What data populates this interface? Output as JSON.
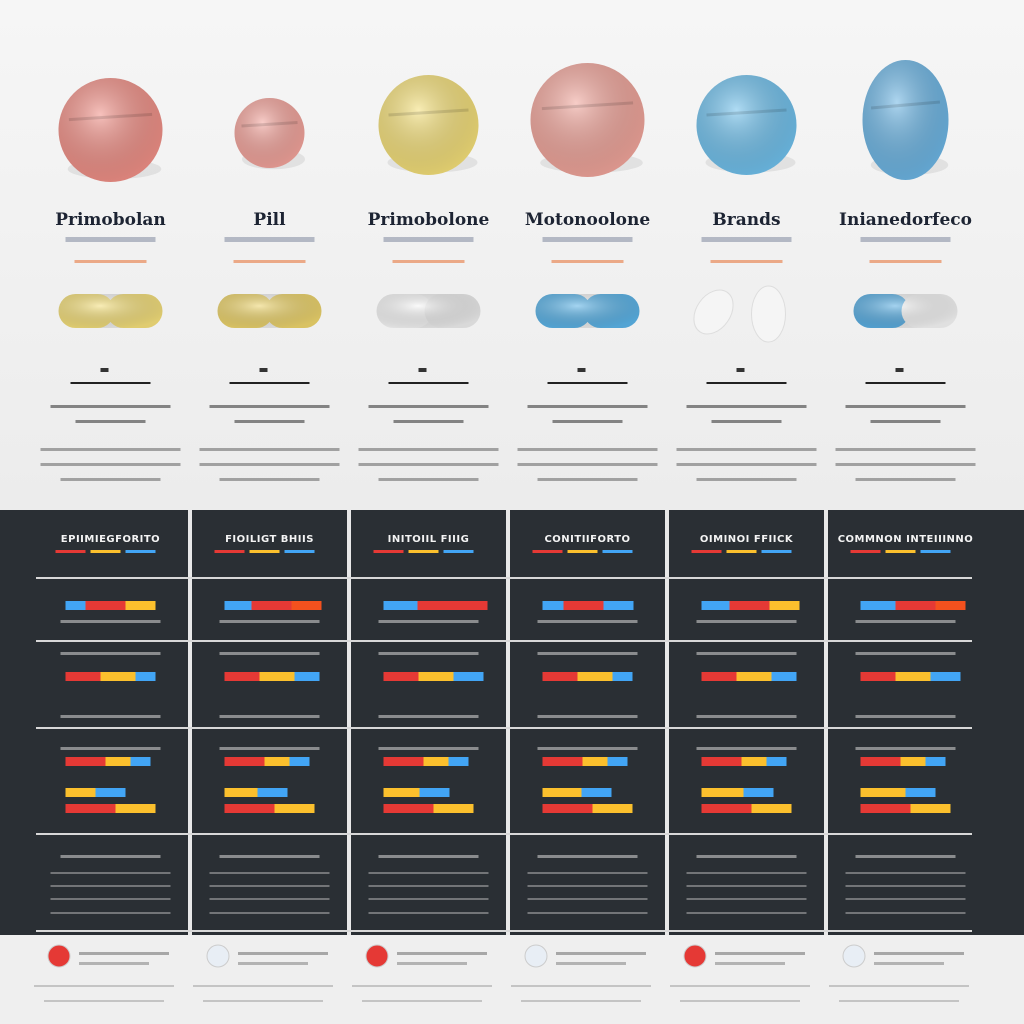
{
  "columns": [
    {
      "title": "Primobolan",
      "header": "EPIIMIEGFORITO"
    },
    {
      "title": "Pill",
      "header": "FIOILIGT BHIIS"
    },
    {
      "title": "Primobolone",
      "header": "INITOIIL FIIIG"
    },
    {
      "title": "Motonoolone",
      "header": "CONITIIFORTO"
    },
    {
      "title": "Brands",
      "header": "OIMINOI FFIICK"
    },
    {
      "title": "Inianedorfeco",
      "header": "COMMNON INTEIIINNO"
    }
  ]
}
